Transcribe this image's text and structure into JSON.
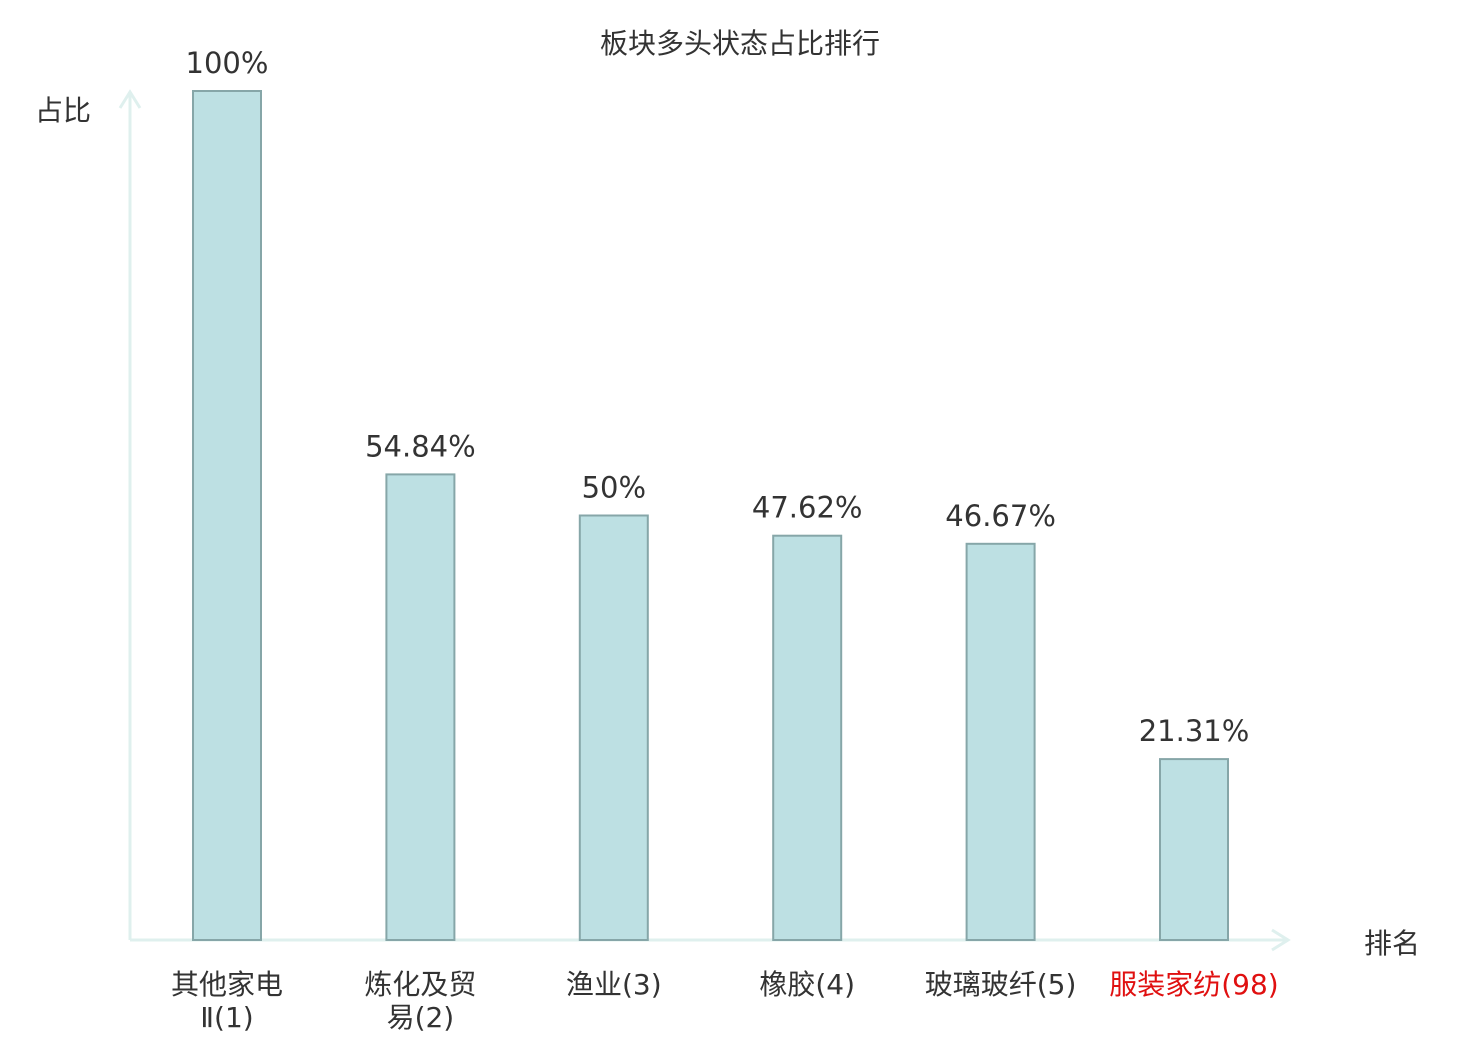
{
  "chart_data": {
    "type": "bar",
    "title": "板块多头状态占比排行",
    "ylabel": "占比",
    "xlabel": "排名",
    "categories": [
      {
        "name": "其他家电Ⅱ",
        "rank": "(1)",
        "lines": [
          "其他家电",
          "Ⅱ(1)"
        ],
        "highlight": false
      },
      {
        "name": "炼化及贸易",
        "rank": "(2)",
        "lines": [
          "炼化及贸",
          "易(2)"
        ],
        "highlight": false
      },
      {
        "name": "渔业",
        "rank": "(3)",
        "lines": [
          "渔业(3)"
        ],
        "highlight": false
      },
      {
        "name": "橡胶",
        "rank": "(4)",
        "lines": [
          "橡胶(4)"
        ],
        "highlight": false
      },
      {
        "name": "玻璃玻纤",
        "rank": "(5)",
        "lines": [
          "玻璃玻纤(5)"
        ],
        "highlight": false
      },
      {
        "name": "服装家纺",
        "rank": "(98)",
        "lines": [
          "服装家纺(98)"
        ],
        "highlight": true
      }
    ],
    "values": [
      100,
      54.84,
      50,
      47.62,
      46.67,
      21.31
    ],
    "value_labels": [
      "100%",
      "54.84%",
      "50%",
      "47.62%",
      "46.67%",
      "21.31%"
    ],
    "ylim": [
      0,
      100
    ],
    "grid": false,
    "colors": {
      "bar_fill": "#bde0e3",
      "bar_stroke": "#86a6a8",
      "axis": "#dff0ee",
      "text": "#333333",
      "highlight": "#e01010"
    }
  }
}
